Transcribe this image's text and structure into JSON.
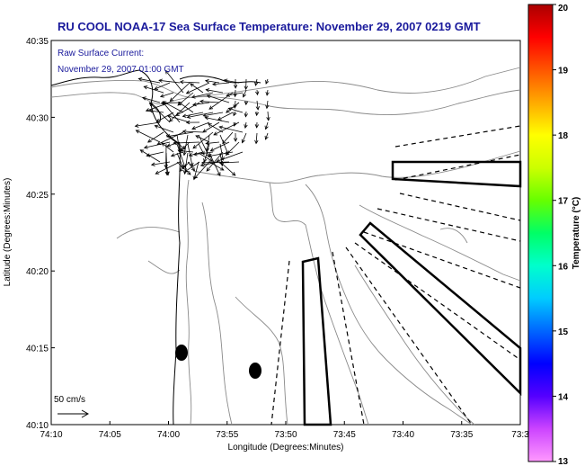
{
  "title": "RU COOL  NOAA-17  Sea Surface Temperature:  November 29, 2007 0219 GMT",
  "inset": {
    "line1": "Raw Surface Current:",
    "line2": "November 29, 2007 01:00 GMT"
  },
  "scale_label": "50 cm/s",
  "colorbar": {
    "label": "Temperature (°C)",
    "ticks": [
      "13",
      "14",
      "15",
      "16",
      "17",
      "18",
      "19",
      "20"
    ],
    "min": 13,
    "max": 20,
    "colors": [
      "#ff99ff",
      "#cc44ff",
      "#5500ff",
      "#0000ff",
      "#0066ff",
      "#00ccff",
      "#00ffcc",
      "#00ff66",
      "#66ff00",
      "#ccff00",
      "#ffff00",
      "#ffaa00",
      "#ff5500",
      "#ff0000",
      "#aa0000"
    ]
  },
  "chart_data": {
    "type": "map",
    "title": "RU COOL  NOAA-17  Sea Surface Temperature:  November 29, 2007 0219 GMT",
    "xlabel": "Longitude (Degrees:Minutes)",
    "ylabel": "Latitude (Degrees:Minutes)",
    "x_ticks": [
      "74:10",
      "74:05",
      "74:00",
      "73:55",
      "73:50",
      "73:45",
      "73:40",
      "73:35",
      "73:3"
    ],
    "y_ticks": [
      "40:35",
      "40:30",
      "40:25",
      "40:20",
      "40:15",
      "40:10"
    ],
    "x_range": [
      -74.1667,
      -73.5
    ],
    "y_range": [
      40.1667,
      40.5833
    ],
    "colorbar_range": [
      13,
      20
    ],
    "colorbar_label": "Temperature (°C)",
    "current_scale": "50 cm/s"
  }
}
